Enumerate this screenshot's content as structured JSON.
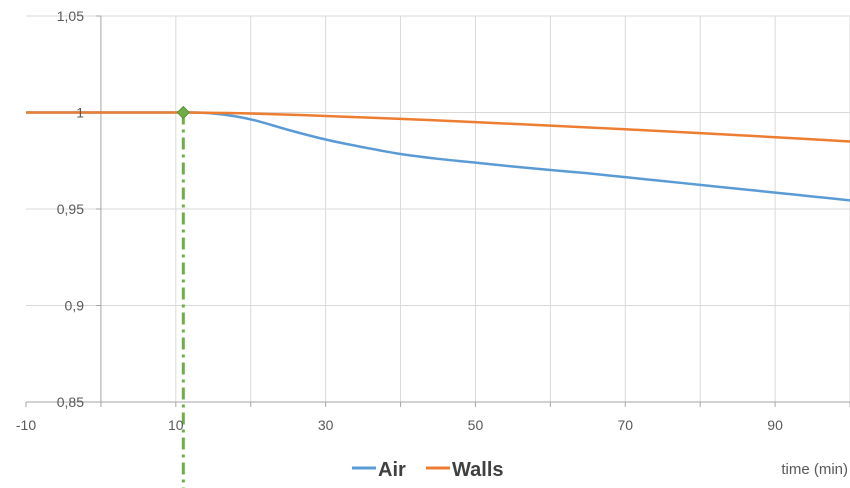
{
  "chart_data": {
    "type": "line",
    "title": "",
    "xlabel": "time (min)",
    "ylabel": "",
    "xlim": [
      -10,
      100
    ],
    "ylim": [
      0.85,
      1.05
    ],
    "x_ticks": [
      -10,
      10,
      30,
      50,
      70,
      90
    ],
    "x_tick_labels": [
      "-10",
      "10",
      "30",
      "50",
      "70",
      "90"
    ],
    "y_ticks": [
      0.85,
      0.9,
      0.95,
      1,
      1.05
    ],
    "y_tick_labels": [
      "0,85",
      "0,9",
      "0,95",
      "1",
      "1,05"
    ],
    "grid": true,
    "legend_position": "bottom",
    "series": [
      {
        "name": "Air",
        "color": "#5b9bd5",
        "x": [
          -10,
          0,
          10,
          12,
          15,
          18,
          21,
          25,
          30,
          35,
          40,
          45,
          50,
          55,
          60,
          65,
          70,
          75,
          80,
          85,
          90,
          95,
          100
        ],
        "y": [
          1,
          1,
          1,
          1,
          0.9995,
          0.998,
          0.9955,
          0.991,
          0.986,
          0.982,
          0.9785,
          0.976,
          0.974,
          0.972,
          0.9702,
          0.9685,
          0.9665,
          0.9645,
          0.9625,
          0.9605,
          0.9585,
          0.9565,
          0.9545
        ]
      },
      {
        "name": "Walls",
        "color": "#ed7d31",
        "x": [
          -10,
          0,
          10,
          12,
          20,
          30,
          40,
          50,
          60,
          70,
          80,
          90,
          100
        ],
        "y": [
          1,
          1,
          1,
          1,
          0.9995,
          0.9982,
          0.9967,
          0.995,
          0.9932,
          0.9913,
          0.9893,
          0.9872,
          0.985
        ]
      }
    ],
    "marker": {
      "x": 11,
      "y": 1,
      "color": "#70ad47"
    }
  }
}
